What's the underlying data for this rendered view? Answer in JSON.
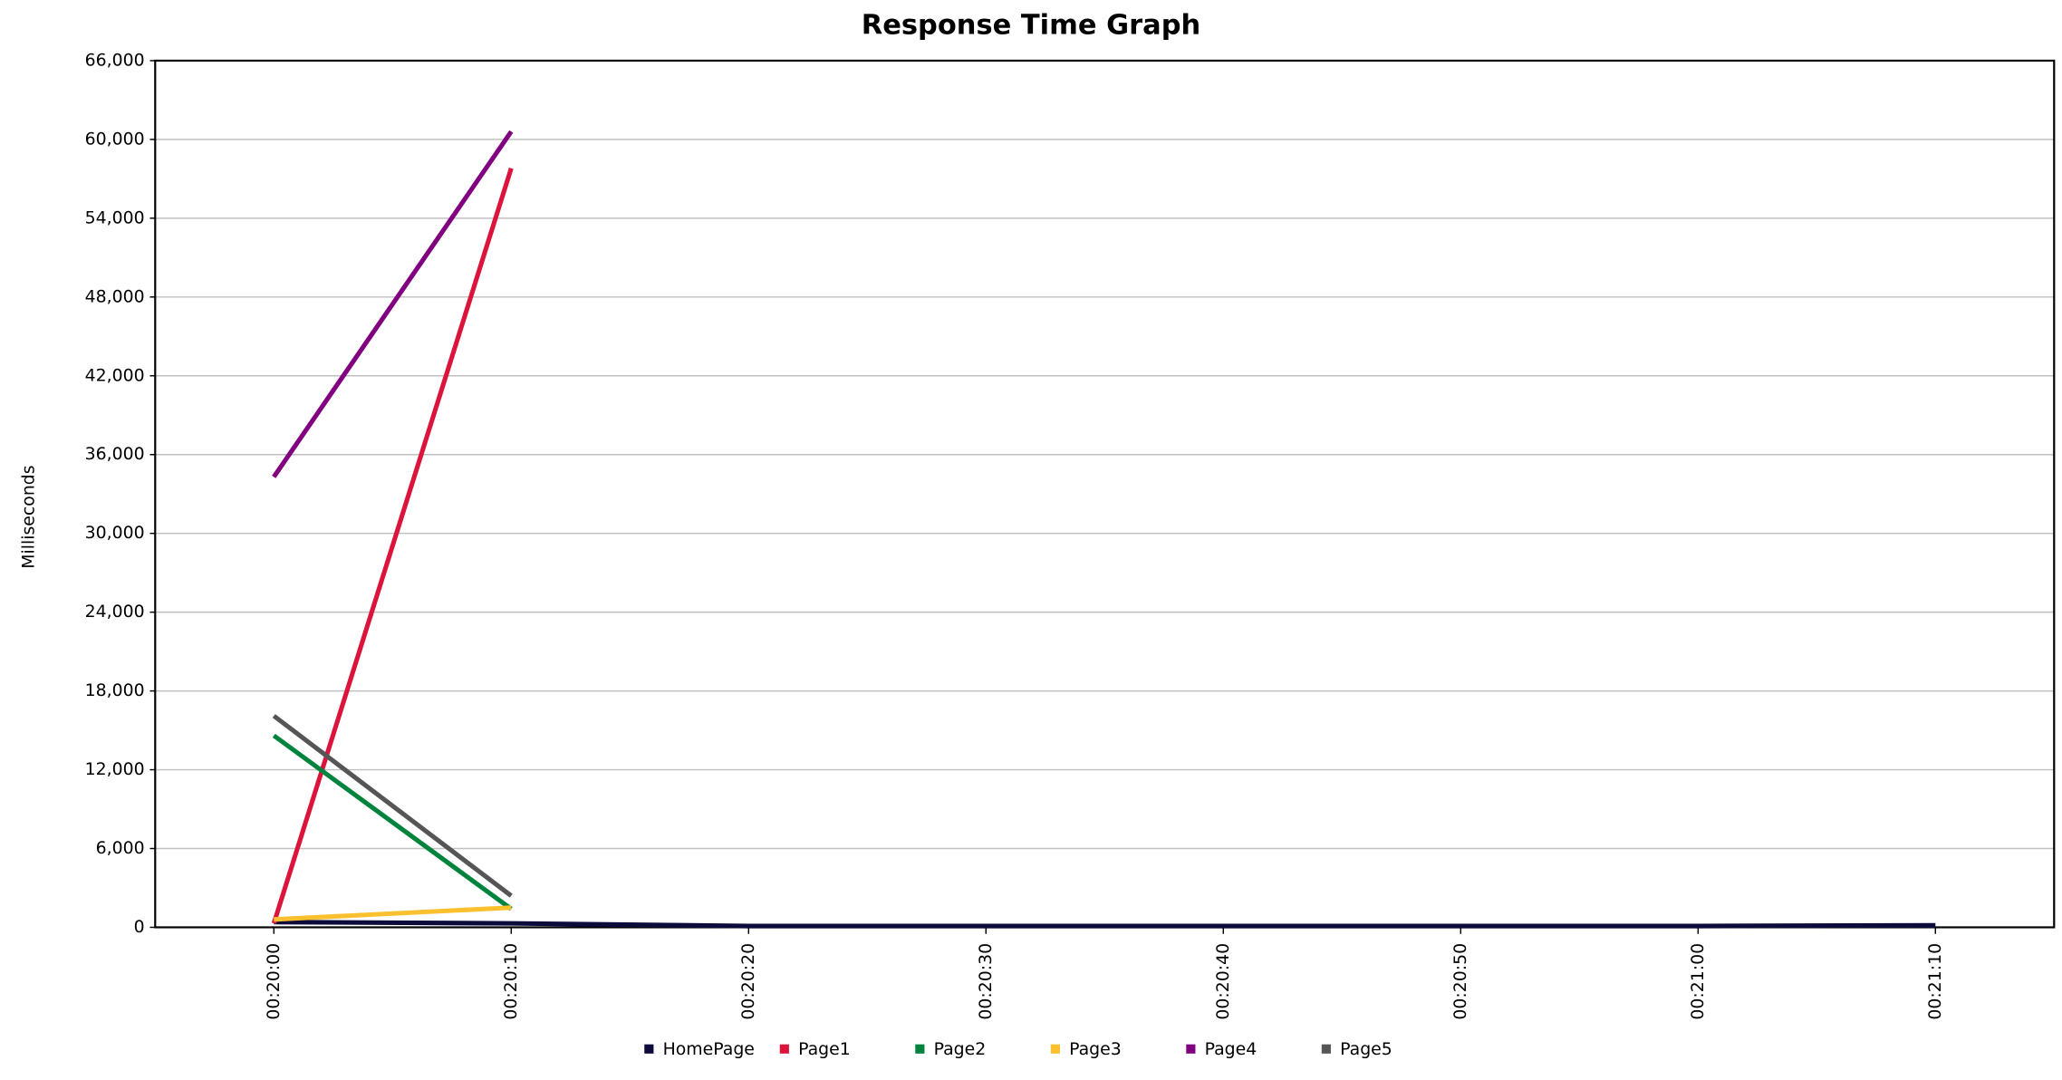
{
  "chart_data": {
    "type": "line",
    "title": "Response Time Graph",
    "y_label": "Milliseconds",
    "categories": [
      "00:20:00",
      "00:20:10",
      "00:20:20",
      "00:20:30",
      "00:20:40",
      "00:20:50",
      "00:21:00",
      "00:21:10"
    ],
    "series": [
      {
        "name": "HomePage",
        "color": "#0c0b3b",
        "values": [
          400,
          300,
          100,
          100,
          100,
          100,
          100,
          150
        ]
      },
      {
        "name": "Page1",
        "color": "#dc143c",
        "values": [
          300,
          57800,
          null,
          null,
          null,
          null,
          null,
          null
        ]
      },
      {
        "name": "Page2",
        "color": "#00843d",
        "values": [
          14600,
          1400,
          null,
          null,
          null,
          null,
          null,
          null
        ]
      },
      {
        "name": "Page3",
        "color": "#fbc02d",
        "values": [
          600,
          1500,
          null,
          null,
          null,
          null,
          null,
          null
        ]
      },
      {
        "name": "Page4",
        "color": "#800080",
        "values": [
          34300,
          60600,
          null,
          null,
          null,
          null,
          null,
          null
        ]
      },
      {
        "name": "Page5",
        "color": "#555555",
        "values": [
          16100,
          2400,
          null,
          null,
          null,
          null,
          null,
          null
        ]
      }
    ],
    "ylim": [
      0,
      66000
    ],
    "yticks": [
      0,
      {
        "value": 6000,
        "label": "6,000"
      },
      {
        "value": 12000,
        "label": "12,000"
      },
      {
        "value": 18000,
        "label": "18,000"
      },
      {
        "value": 24000,
        "label": "24,000"
      },
      {
        "value": 30000,
        "label": "30,000"
      },
      {
        "value": 36000,
        "label": "36,000"
      },
      {
        "value": 42000,
        "label": "42,000"
      },
      {
        "value": 48000,
        "label": "48,000"
      },
      {
        "value": 54000,
        "label": "54,000"
      },
      {
        "value": 60000,
        "label": "60,000"
      },
      {
        "value": 66000,
        "label": "66,000"
      }
    ],
    "grid": true,
    "legend": "bottom"
  }
}
